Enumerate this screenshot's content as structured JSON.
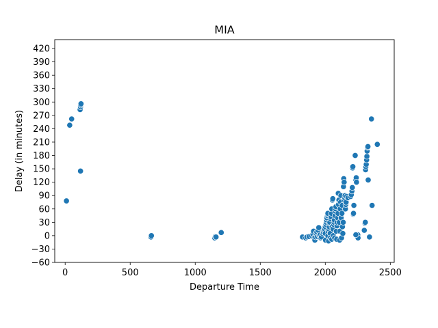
{
  "chart_data": {
    "type": "scatter",
    "title": "MIA",
    "xlabel": "Departure Time",
    "ylabel": "Delay (in minutes)",
    "xlim": [
      -80,
      2530
    ],
    "ylim": [
      -60,
      440
    ],
    "xticks": [
      0,
      500,
      1000,
      1500,
      2000,
      2500
    ],
    "yticks": [
      -60,
      -30,
      0,
      30,
      60,
      90,
      120,
      150,
      180,
      210,
      240,
      270,
      300,
      330,
      360,
      390,
      420
    ],
    "grid": false,
    "point_color": "#1f77b4",
    "points": [
      [
        10,
        78
      ],
      [
        35,
        248
      ],
      [
        50,
        262
      ],
      [
        115,
        283
      ],
      [
        118,
        289
      ],
      [
        120,
        293
      ],
      [
        122,
        296
      ],
      [
        118,
        145
      ],
      [
        660,
        -3
      ],
      [
        663,
        0
      ],
      [
        1150,
        -5
      ],
      [
        1155,
        -2
      ],
      [
        1160,
        -3
      ],
      [
        1200,
        7
      ],
      [
        1825,
        -3
      ],
      [
        1850,
        -5
      ],
      [
        1860,
        -3
      ],
      [
        1875,
        -2
      ],
      [
        1895,
        0
      ],
      [
        1905,
        3
      ],
      [
        1910,
        10
      ],
      [
        1915,
        -5
      ],
      [
        1920,
        -10
      ],
      [
        1925,
        -3
      ],
      [
        1930,
        5
      ],
      [
        1935,
        8
      ],
      [
        1940,
        -2
      ],
      [
        1945,
        12
      ],
      [
        1950,
        18
      ],
      [
        1955,
        0
      ],
      [
        1960,
        2
      ],
      [
        1965,
        -5
      ],
      [
        1970,
        -3
      ],
      [
        1980,
        5
      ],
      [
        1985,
        8
      ],
      [
        1990,
        12
      ],
      [
        1995,
        15
      ],
      [
        2000,
        20
      ],
      [
        2000,
        5
      ],
      [
        2002,
        -10
      ],
      [
        2005,
        25
      ],
      [
        2008,
        30
      ],
      [
        2010,
        35
      ],
      [
        2012,
        40
      ],
      [
        2015,
        45
      ],
      [
        2018,
        48
      ],
      [
        2020,
        50
      ],
      [
        2020,
        0
      ],
      [
        2022,
        10
      ],
      [
        2025,
        -12
      ],
      [
        2028,
        15
      ],
      [
        2030,
        20
      ],
      [
        2033,
        28
      ],
      [
        2035,
        30
      ],
      [
        2038,
        5
      ],
      [
        2040,
        -5
      ],
      [
        2042,
        38
      ],
      [
        2045,
        42
      ],
      [
        2048,
        50
      ],
      [
        2050,
        60
      ],
      [
        2050,
        -8
      ],
      [
        2052,
        20
      ],
      [
        2055,
        80
      ],
      [
        2058,
        83
      ],
      [
        2060,
        15
      ],
      [
        2062,
        0
      ],
      [
        2065,
        25
      ],
      [
        2068,
        30
      ],
      [
        2070,
        35
      ],
      [
        2072,
        -5
      ],
      [
        2075,
        45
      ],
      [
        2078,
        55
      ],
      [
        2080,
        60
      ],
      [
        2082,
        65
      ],
      [
        2085,
        10
      ],
      [
        2088,
        -8
      ],
      [
        2090,
        22
      ],
      [
        2092,
        30
      ],
      [
        2095,
        40
      ],
      [
        2098,
        50
      ],
      [
        2100,
        95
      ],
      [
        2102,
        70
      ],
      [
        2105,
        80
      ],
      [
        2108,
        30
      ],
      [
        2110,
        -10
      ],
      [
        2112,
        10
      ],
      [
        2115,
        60
      ],
      [
        2118,
        75
      ],
      [
        2120,
        90
      ],
      [
        2122,
        40
      ],
      [
        2125,
        -5
      ],
      [
        2128,
        50
      ],
      [
        2130,
        68
      ],
      [
        2132,
        20
      ],
      [
        2135,
        5
      ],
      [
        2138,
        30
      ],
      [
        2140,
        110
      ],
      [
        2142,
        128
      ],
      [
        2145,
        120
      ],
      [
        2148,
        80
      ],
      [
        2150,
        85
      ],
      [
        2152,
        90
      ],
      [
        2155,
        60
      ],
      [
        2158,
        70
      ],
      [
        2160,
        75
      ],
      [
        2165,
        88
      ],
      [
        2175,
        85
      ],
      [
        2195,
        88
      ],
      [
        2200,
        92
      ],
      [
        2205,
        100
      ],
      [
        2208,
        108
      ],
      [
        2210,
        152
      ],
      [
        2212,
        155
      ],
      [
        2215,
        48
      ],
      [
        2217,
        50
      ],
      [
        2220,
        68
      ],
      [
        2230,
        180
      ],
      [
        2235,
        125
      ],
      [
        2238,
        130
      ],
      [
        2240,
        120
      ],
      [
        2245,
        -2
      ],
      [
        2248,
        0
      ],
      [
        2250,
        2
      ],
      [
        2252,
        -5
      ],
      [
        2235,
        2
      ],
      [
        2300,
        12
      ],
      [
        2305,
        28
      ],
      [
        2308,
        30
      ],
      [
        2310,
        148
      ],
      [
        2312,
        155
      ],
      [
        2315,
        160
      ],
      [
        2318,
        170
      ],
      [
        2320,
        178
      ],
      [
        2322,
        190
      ],
      [
        2325,
        198
      ],
      [
        2328,
        200
      ],
      [
        2330,
        125
      ],
      [
        2340,
        -3
      ],
      [
        2355,
        262
      ],
      [
        2360,
        68
      ],
      [
        2400,
        205
      ]
    ]
  }
}
